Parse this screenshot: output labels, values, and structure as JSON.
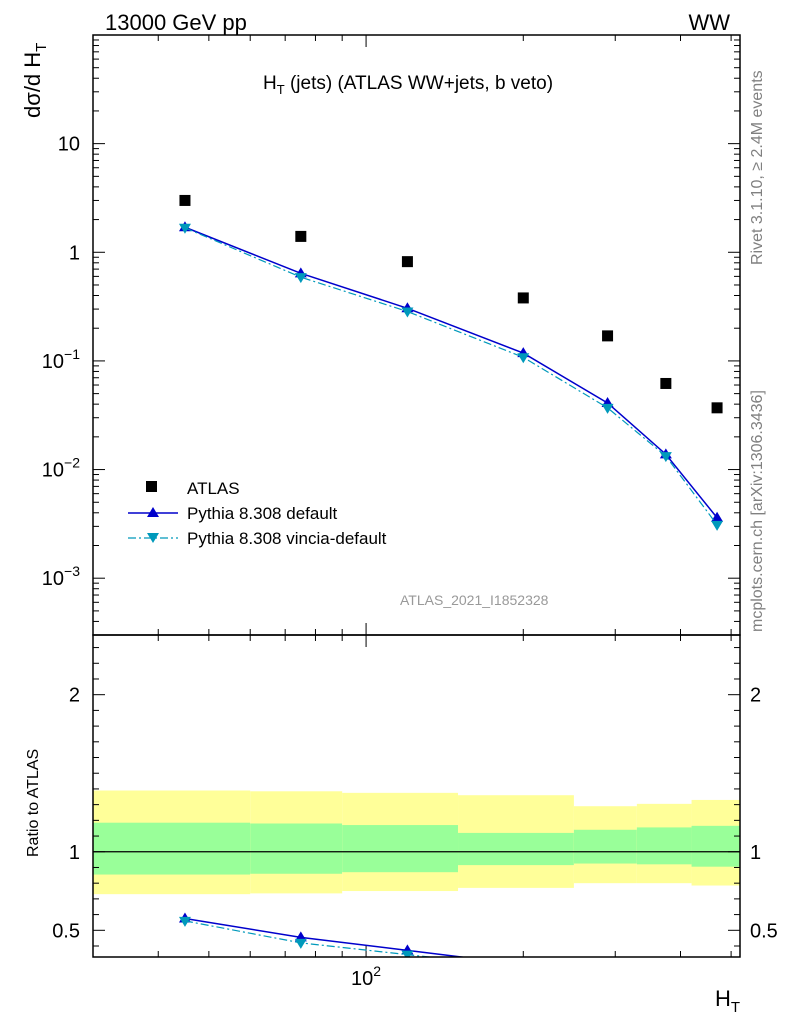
{
  "header": {
    "left": "13000 GeV pp",
    "right": "WW"
  },
  "side_labels": {
    "rivet": "Rivet 3.1.10, ≥ 2.4M events",
    "mcplots": "mcplots.cern.ch [arXiv:1306.3436]"
  },
  "watermark": "ATLAS_2021_I1852328",
  "colors": {
    "data": "#000000",
    "pythia_default": "#0000cc",
    "pythia_vincia": "#0099bb",
    "band_inner": "#99ff99",
    "band_outer": "#ffff99"
  },
  "chart_data": [
    {
      "type": "scatter",
      "panel": "main",
      "title": {
        "main": "H",
        "sub": "T",
        "rest": " (jets) (ATLAS WW+jets, b veto)"
      },
      "ylabel": {
        "main": "dσ/d H",
        "sub": "T"
      },
      "xlabel": {
        "main": "H",
        "sub": "T"
      },
      "xscale": "log",
      "yscale": "log",
      "xlim": [
        30,
        520
      ],
      "ylim": [
        0.0003,
        100
      ],
      "y_ticks": [
        {
          "value": 0.001,
          "base": "10",
          "exp": "−3"
        },
        {
          "value": 0.01,
          "base": "10",
          "exp": "−2"
        },
        {
          "value": 0.1,
          "base": "10",
          "exp": "−1"
        },
        {
          "value": 1,
          "label": "1"
        },
        {
          "value": 10,
          "label": "10"
        }
      ],
      "x_ticks": [
        {
          "value": 100,
          "base": "10",
          "exp": "2"
        }
      ],
      "bin_edges": [
        30,
        60,
        90,
        150,
        250,
        330,
        420,
        520
      ],
      "series": [
        {
          "name": "ATLAS",
          "marker": "square",
          "x": [
            45,
            75,
            120,
            200,
            290,
            375,
            470
          ],
          "y": [
            3.0,
            1.4,
            0.82,
            0.38,
            0.17,
            0.062,
            0.037
          ]
        },
        {
          "name": "Pythia 8.308 default",
          "marker": "triangle-up",
          "line": "solid",
          "x": [
            45,
            75,
            120,
            200,
            290,
            375,
            470
          ],
          "y": [
            1.7,
            0.64,
            0.305,
            0.118,
            0.041,
            0.0138,
            0.0036
          ]
        },
        {
          "name": "Pythia 8.308 vincia-default",
          "marker": "triangle-down",
          "line": "dashdot",
          "x": [
            45,
            75,
            120,
            200,
            290,
            375,
            470
          ],
          "y": [
            1.68,
            0.59,
            0.285,
            0.108,
            0.037,
            0.0133,
            0.0031
          ]
        }
      ],
      "legend": {
        "position": "lower-left"
      }
    },
    {
      "type": "line",
      "panel": "ratio",
      "ylabel": "Ratio to ATLAS",
      "xscale": "log",
      "ylim": [
        0.33,
        2.38
      ],
      "y_ticks": [
        {
          "value": 0.5,
          "label": "0.5"
        },
        {
          "value": 1,
          "label": "1"
        },
        {
          "value": 2,
          "label": "2"
        }
      ],
      "bands": [
        {
          "edges": [
            30,
            60,
            90,
            150,
            250,
            330,
            420,
            520
          ],
          "outer_lo": [
            0.73,
            0.735,
            0.75,
            0.77,
            0.8,
            0.8,
            0.785
          ],
          "outer_hi": [
            1.39,
            1.385,
            1.375,
            1.36,
            1.29,
            1.305,
            1.33
          ],
          "inner_lo": [
            0.855,
            0.86,
            0.87,
            0.915,
            0.925,
            0.92,
            0.905
          ],
          "inner_hi": [
            1.185,
            1.18,
            1.17,
            1.12,
            1.14,
            1.155,
            1.165
          ]
        }
      ],
      "series": [
        {
          "name": "Pythia 8.308 default",
          "x": [
            45,
            75,
            120
          ],
          "y": [
            0.575,
            0.455,
            0.372
          ]
        },
        {
          "name": "Pythia 8.308 vincia-default",
          "x": [
            45,
            75,
            120
          ],
          "y": [
            0.56,
            0.42,
            0.345
          ]
        }
      ]
    }
  ]
}
